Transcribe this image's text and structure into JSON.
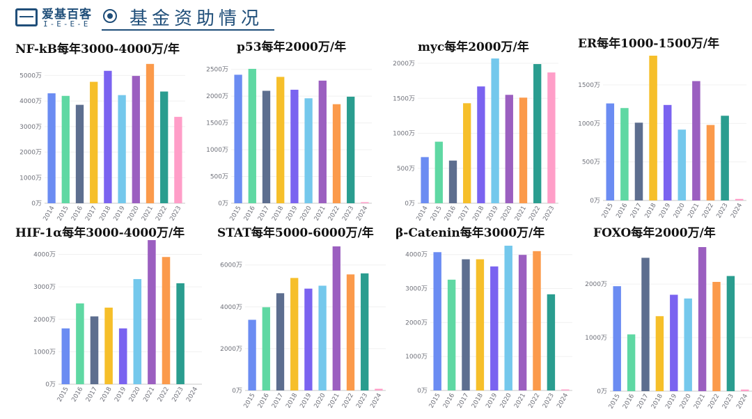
{
  "header": {
    "logo_name": "爱基百客",
    "logo_sub": "I-E-E-E",
    "title": "基金资助情况"
  },
  "colors": [
    "#6b8cf2",
    "#5fd8a3",
    "#5d6e8f",
    "#f6bf2a",
    "#7a63f0",
    "#74c8ec",
    "#9b5fc0",
    "#fb9a4b",
    "#2a9d8f",
    "#ff9ec8"
  ],
  "chart_data": [
    {
      "type": "bar",
      "title": "NF-kB每年3000-4000万/年",
      "categories": [
        "2014",
        "2015",
        "2016",
        "2017",
        "2018",
        "2019",
        "2020",
        "2021",
        "2022",
        "2023"
      ],
      "values": [
        4300,
        4200,
        3850,
        4750,
        5180,
        4230,
        4980,
        5450,
        4370,
        3380
      ],
      "yticks": [
        "0万",
        "1000万",
        "2000万",
        "3000万",
        "4000万",
        "5000万"
      ],
      "ylim": [
        0,
        5500
      ]
    },
    {
      "type": "bar",
      "title": "p53每年2000万/年",
      "categories": [
        "2015",
        "2016",
        "2017",
        "2018",
        "2019",
        "2020",
        "2021",
        "2022",
        "2023",
        "2024"
      ],
      "values": [
        2400,
        2510,
        2100,
        2360,
        2120,
        1960,
        2290,
        1850,
        1990,
        20
      ],
      "yticks": [
        "0万",
        "500万",
        "1000万",
        "1500万",
        "2000万",
        "2500万"
      ],
      "ylim": [
        0,
        2600
      ]
    },
    {
      "type": "bar",
      "title": "myc每年2000万/年",
      "categories": [
        "2014",
        "2015",
        "2016",
        "2017",
        "2018",
        "2019",
        "2020",
        "2021",
        "2022",
        "2023"
      ],
      "values": [
        660,
        880,
        610,
        1430,
        1670,
        2070,
        1550,
        1510,
        1990,
        1870
      ],
      "yticks": [
        "0万",
        "500万",
        "1000万",
        "1500万",
        "2000万"
      ],
      "ylim": [
        0,
        2070
      ]
    },
    {
      "type": "bar",
      "title": "ER每年1000-1500万/年",
      "categories": [
        "2015",
        "2016",
        "2017",
        "2018",
        "2019",
        "2020",
        "2021",
        "2022",
        "2023",
        "2024"
      ],
      "values": [
        1260,
        1200,
        1010,
        1880,
        1240,
        920,
        1550,
        980,
        1100,
        20
      ],
      "yticks": [
        "0万",
        "500万",
        "1000万",
        "1500万"
      ],
      "ylim": [
        0,
        1880
      ]
    },
    {
      "type": "bar",
      "title": "HIF-1α每年3000-4000万/年",
      "categories": [
        "2015",
        "2016",
        "2017",
        "2018",
        "2019",
        "2020",
        "2021",
        "2022",
        "2023",
        "2024"
      ],
      "values": [
        1720,
        2490,
        2090,
        2360,
        1720,
        3240,
        4440,
        3920,
        3110,
        0
      ],
      "yticks": [
        "0万",
        "1000万",
        "2000万",
        "3000万",
        "4000万"
      ],
      "ylim": [
        0,
        4440
      ]
    },
    {
      "type": "bar",
      "title": "STAT每年5000-6000万/年",
      "categories": [
        "2015",
        "2016",
        "2017",
        "2018",
        "2019",
        "2020",
        "2021",
        "2022",
        "2023",
        "2024"
      ],
      "values": [
        3380,
        3980,
        4650,
        5380,
        4870,
        5010,
        6890,
        5550,
        5600,
        80
      ],
      "yticks": [
        "0万",
        "2000万",
        "4000万",
        "6000万"
      ],
      "ylim": [
        0,
        6890
      ]
    },
    {
      "type": "bar",
      "title": "β-Catenin每年3000万/年",
      "categories": [
        "2015",
        "2016",
        "2017",
        "2018",
        "2019",
        "2020",
        "2021",
        "2022",
        "2023",
        "2024"
      ],
      "values": [
        4070,
        3260,
        3860,
        3860,
        3650,
        4260,
        3990,
        4100,
        2830,
        30
      ],
      "yticks": [
        "0万",
        "1000万",
        "2000万",
        "3000万",
        "4000万"
      ],
      "ylim": [
        0,
        4260
      ]
    },
    {
      "type": "bar",
      "title": "FOXO每年2000万/年",
      "categories": [
        "2015",
        "2016",
        "2017",
        "2018",
        "2019",
        "2020",
        "2021",
        "2022",
        "2023",
        "2024"
      ],
      "values": [
        1960,
        1060,
        2490,
        1400,
        1800,
        1730,
        2690,
        2040,
        2150,
        30
      ],
      "yticks": [
        "0万",
        "1000万",
        "2000万"
      ],
      "ylim": [
        0,
        2690
      ]
    }
  ]
}
